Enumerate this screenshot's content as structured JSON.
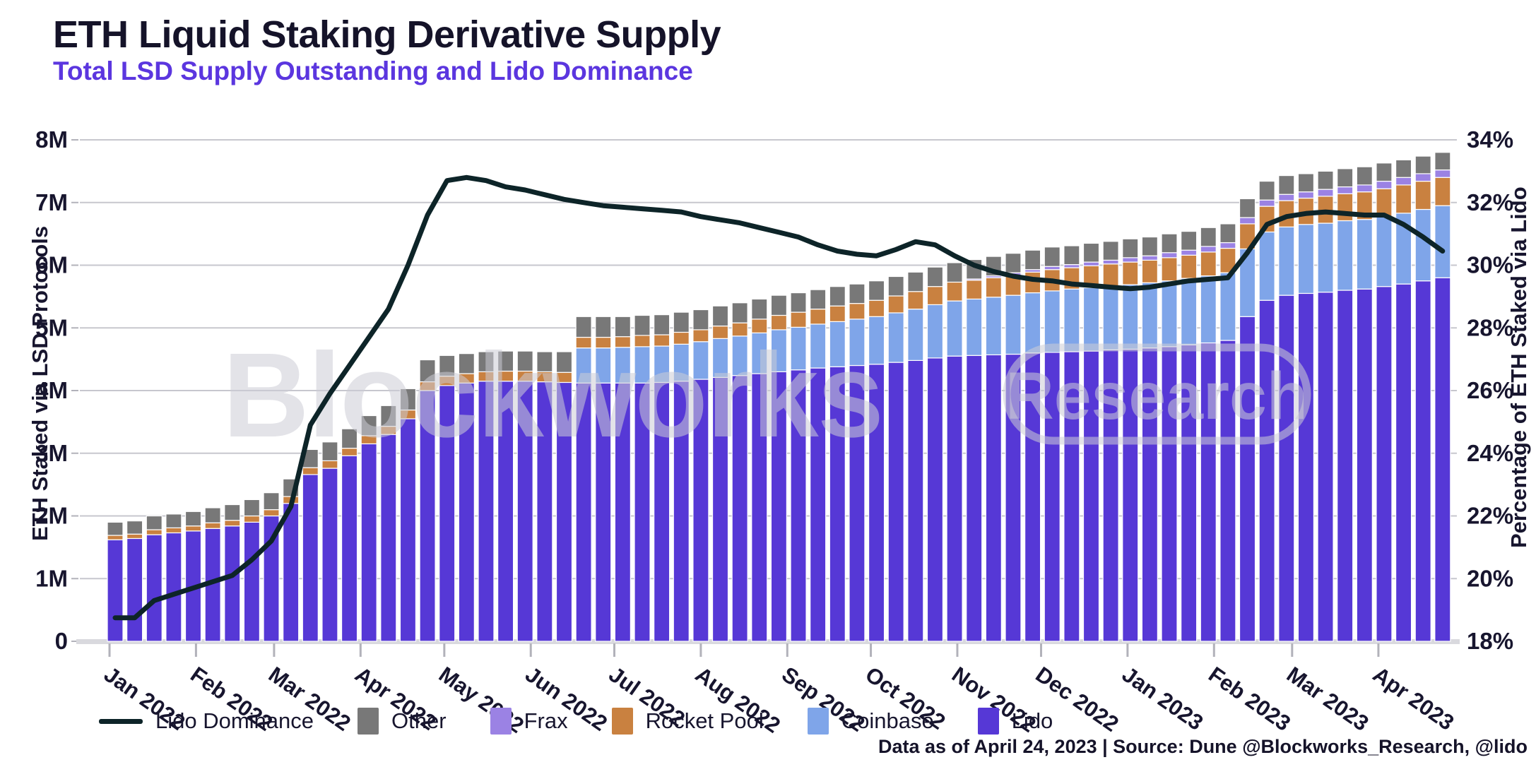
{
  "header": {
    "title": "ETH Liquid Staking Derivative Supply",
    "subtitle": "Total LSD Supply Outstanding and Lido Dominance"
  },
  "axes": {
    "left_title": "ETH Staked via LSD Protocols",
    "right_title": "Percentage of ETH Staked via Lido",
    "left_tick_labels": [
      "0",
      "1M",
      "2M",
      "3M",
      "4M",
      "5M",
      "6M",
      "7M",
      "8M"
    ],
    "right_tick_labels": [
      "18%",
      "20%",
      "22%",
      "24%",
      "26%",
      "28%",
      "30%",
      "32%",
      "34%"
    ]
  },
  "legend": {
    "items": [
      {
        "label": "Lido Dominance",
        "type": "line",
        "color": "#0d2428"
      },
      {
        "label": "Other",
        "type": "box",
        "color": "#787878"
      },
      {
        "label": "Frax",
        "type": "box",
        "color": "#9b82e4"
      },
      {
        "label": "Rocket Pool",
        "type": "box",
        "color": "#c98140"
      },
      {
        "label": "Coinbase",
        "type": "box",
        "color": "#7fa5e9"
      },
      {
        "label": "Lido",
        "type": "box",
        "color": "#5638D6"
      }
    ]
  },
  "watermark": {
    "main": "Blockworks",
    "badge": "Research"
  },
  "footer": {
    "text": "Data as of April 24, 2023 | Source: Dune @Blockworks_Research, @lido"
  },
  "colors": {
    "title": "#151329",
    "subtitle": "#5B36DF",
    "axis_text": "#17152e",
    "grid": "#c7c7ce",
    "baseline": "#d9d9de",
    "tick": "#b2b2ba",
    "watermark": "#cdcdd6",
    "line": "#0d2428",
    "lido": "#5638D6",
    "coinbase": "#7fa5e9",
    "rocket_pool": "#c98140",
    "frax": "#9b82e4",
    "other": "#787878"
  },
  "chart_data": {
    "type": "bar",
    "note": "Weekly stacked bars (millions of ETH) Jan 2022 - Apr 24 2023, plus Lido Dominance line on right axis (%)",
    "left_axis_range": [
      0,
      8000000
    ],
    "right_axis_range": [
      18,
      34
    ],
    "grid": "horizontal",
    "x_ticks": [
      {
        "label": "Jan 2022",
        "week": -0.29
      },
      {
        "label": "Feb 2022",
        "week": 4.14
      },
      {
        "label": "Mar 2022",
        "week": 8.14
      },
      {
        "label": "Apr 2022",
        "week": 12.57
      },
      {
        "label": "May 2022",
        "week": 16.86
      },
      {
        "label": "Jun 2022",
        "week": 21.29
      },
      {
        "label": "Jul 2022",
        "week": 25.57
      },
      {
        "label": "Aug 2022",
        "week": 30.0
      },
      {
        "label": "Sep 2022",
        "week": 34.43
      },
      {
        "label": "Oct 2022",
        "week": 38.71
      },
      {
        "label": "Nov 2022",
        "week": 43.14
      },
      {
        "label": "Dec 2022",
        "week": 47.43
      },
      {
        "label": "Jan 2023",
        "week": 51.86
      },
      {
        "label": "Feb 2023",
        "week": 56.29
      },
      {
        "label": "Mar 2023",
        "week": 60.29
      },
      {
        "label": "Apr 2023",
        "week": 64.71
      }
    ],
    "series": [
      {
        "name": "Lido",
        "unit": "M ETH",
        "color": "#5638D6",
        "values": [
          1.62,
          1.64,
          1.7,
          1.73,
          1.76,
          1.8,
          1.84,
          1.9,
          2.0,
          2.2,
          2.66,
          2.76,
          2.96,
          3.15,
          3.3,
          3.55,
          4.0,
          4.08,
          4.12,
          4.15,
          4.15,
          4.15,
          4.14,
          4.13,
          4.12,
          4.12,
          4.12,
          4.12,
          4.13,
          4.15,
          4.18,
          4.21,
          4.24,
          4.27,
          4.3,
          4.33,
          4.36,
          4.38,
          4.4,
          4.42,
          4.45,
          4.48,
          4.52,
          4.55,
          4.56,
          4.57,
          4.58,
          4.6,
          4.61,
          4.62,
          4.63,
          4.65,
          4.66,
          4.68,
          4.7,
          4.73,
          4.76,
          4.8,
          5.18,
          5.44,
          5.52,
          5.55,
          5.57,
          5.6,
          5.62,
          5.66,
          5.7,
          5.75,
          5.8
        ]
      },
      {
        "name": "Coinbase",
        "unit": "M ETH",
        "color": "#7fa5e9",
        "values": [
          0,
          0,
          0,
          0,
          0,
          0,
          0,
          0,
          0,
          0,
          0,
          0,
          0,
          0,
          0,
          0,
          0,
          0,
          0,
          0,
          0,
          0,
          0,
          0,
          0.56,
          0.56,
          0.57,
          0.58,
          0.58,
          0.59,
          0.6,
          0.62,
          0.63,
          0.65,
          0.67,
          0.68,
          0.7,
          0.72,
          0.74,
          0.76,
          0.79,
          0.82,
          0.85,
          0.88,
          0.9,
          0.92,
          0.94,
          0.96,
          0.98,
          1.0,
          1.01,
          1.02,
          1.03,
          1.04,
          1.05,
          1.06,
          1.07,
          1.08,
          1.08,
          1.09,
          1.09,
          1.1,
          1.1,
          1.11,
          1.11,
          1.12,
          1.13,
          1.14,
          1.15
        ]
      },
      {
        "name": "Rocket Pool",
        "unit": "M ETH",
        "color": "#c98140",
        "values": [
          0.07,
          0.07,
          0.08,
          0.08,
          0.08,
          0.09,
          0.09,
          0.1,
          0.1,
          0.11,
          0.11,
          0.12,
          0.12,
          0.13,
          0.13,
          0.14,
          0.14,
          0.15,
          0.15,
          0.15,
          0.16,
          0.16,
          0.16,
          0.16,
          0.17,
          0.17,
          0.17,
          0.18,
          0.18,
          0.19,
          0.19,
          0.2,
          0.21,
          0.22,
          0.23,
          0.24,
          0.24,
          0.25,
          0.25,
          0.26,
          0.27,
          0.28,
          0.29,
          0.3,
          0.3,
          0.31,
          0.32,
          0.33,
          0.34,
          0.34,
          0.35,
          0.35,
          0.36,
          0.36,
          0.37,
          0.37,
          0.38,
          0.39,
          0.4,
          0.41,
          0.42,
          0.42,
          0.43,
          0.43,
          0.44,
          0.44,
          0.45,
          0.45,
          0.45
        ]
      },
      {
        "name": "Frax",
        "unit": "M ETH",
        "color": "#9b82e4",
        "values": [
          0,
          0,
          0,
          0,
          0,
          0,
          0,
          0,
          0,
          0,
          0,
          0,
          0,
          0,
          0,
          0,
          0,
          0,
          0,
          0,
          0,
          0,
          0,
          0,
          0,
          0,
          0,
          0,
          0,
          0,
          0,
          0,
          0,
          0,
          0,
          0,
          0,
          0,
          0,
          0,
          0,
          0,
          0,
          0,
          0.02,
          0.03,
          0.04,
          0.04,
          0.05,
          0.05,
          0.06,
          0.06,
          0.07,
          0.07,
          0.08,
          0.08,
          0.09,
          0.09,
          0.1,
          0.1,
          0.1,
          0.1,
          0.11,
          0.11,
          0.11,
          0.12,
          0.12,
          0.12,
          0.12
        ]
      },
      {
        "name": "Other",
        "unit": "M ETH",
        "color": "#787878",
        "values": [
          0.21,
          0.21,
          0.22,
          0.22,
          0.23,
          0.24,
          0.25,
          0.26,
          0.27,
          0.28,
          0.29,
          0.3,
          0.31,
          0.32,
          0.33,
          0.34,
          0.35,
          0.33,
          0.32,
          0.32,
          0.32,
          0.32,
          0.32,
          0.33,
          0.33,
          0.33,
          0.32,
          0.32,
          0.32,
          0.32,
          0.32,
          0.32,
          0.32,
          0.32,
          0.32,
          0.31,
          0.31,
          0.31,
          0.31,
          0.31,
          0.31,
          0.31,
          0.31,
          0.31,
          0.31,
          0.31,
          0.31,
          0.31,
          0.31,
          0.3,
          0.3,
          0.3,
          0.3,
          0.3,
          0.3,
          0.3,
          0.3,
          0.3,
          0.3,
          0.3,
          0.3,
          0.29,
          0.29,
          0.29,
          0.29,
          0.29,
          0.28,
          0.28,
          0.28
        ]
      }
    ],
    "line_series": {
      "name": "Lido Dominance",
      "unit": "%",
      "color": "#0d2428",
      "axis": "right",
      "values": [
        18.75,
        18.75,
        19.3,
        19.5,
        19.7,
        19.9,
        20.1,
        20.6,
        21.2,
        22.3,
        24.9,
        25.9,
        26.8,
        27.7,
        28.6,
        30.0,
        31.6,
        32.7,
        32.8,
        32.7,
        32.5,
        32.4,
        32.25,
        32.1,
        32.0,
        31.9,
        31.85,
        31.8,
        31.75,
        31.7,
        31.55,
        31.45,
        31.35,
        31.2,
        31.05,
        30.9,
        30.65,
        30.45,
        30.35,
        30.3,
        30.5,
        30.75,
        30.65,
        30.3,
        30.0,
        29.8,
        29.65,
        29.55,
        29.5,
        29.4,
        29.35,
        29.3,
        29.25,
        29.3,
        29.4,
        29.5,
        29.55,
        29.6,
        30.4,
        31.3,
        31.55,
        31.65,
        31.7,
        31.65,
        31.6,
        31.6,
        31.3,
        30.9,
        30.45
      ]
    }
  }
}
